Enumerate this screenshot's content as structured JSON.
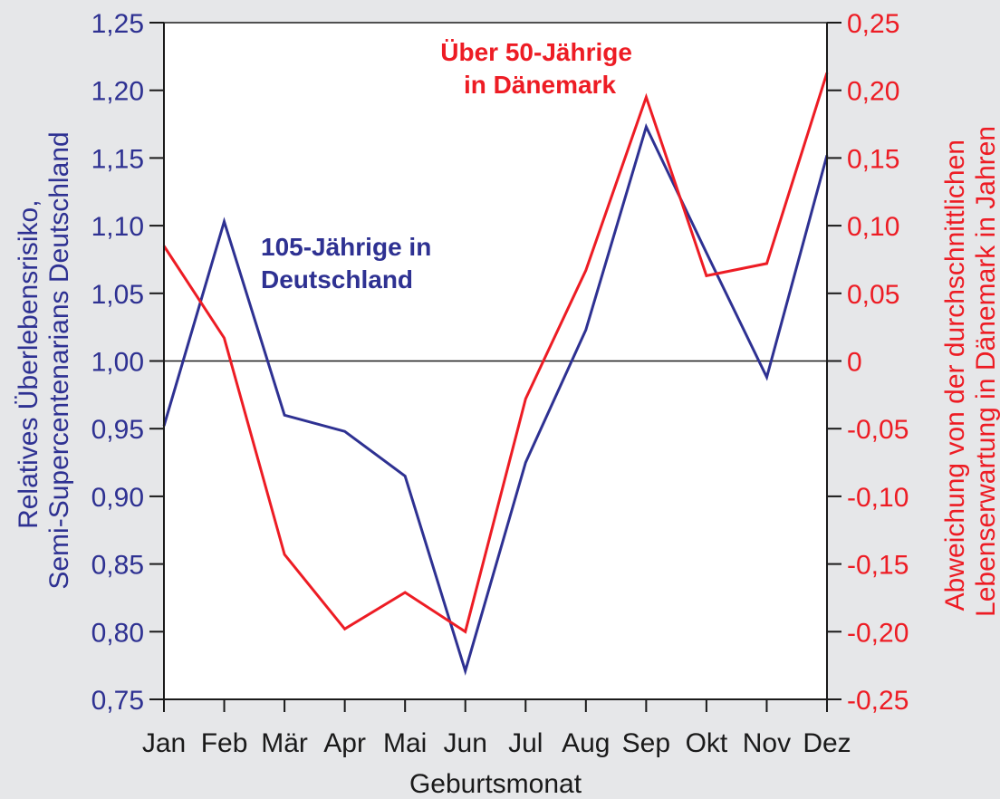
{
  "chart_data": {
    "type": "line",
    "xlabel": "Geburtsmonat",
    "ylabel_left": [
      "Relatives Überlebensrisiko,",
      "Semi-Supercentenarians Deutschland"
    ],
    "ylabel_right": [
      "Abweichung von der durchschnittlichen",
      "Lebenserwartung in Dänemark in Jahren"
    ],
    "categories": [
      "Jan",
      "Feb",
      "Mär",
      "Apr",
      "Mai",
      "Jun",
      "Jul",
      "Aug",
      "Sep",
      "Okt",
      "Nov",
      "Dez"
    ],
    "y_left": {
      "range": [
        0.75,
        1.25
      ],
      "ticks": [
        1.25,
        1.2,
        1.15,
        1.1,
        1.05,
        1.0,
        0.95,
        0.9,
        0.85,
        0.8,
        0.75
      ],
      "tick_labels": [
        "1,25",
        "1,20",
        "1,15",
        "1,10",
        "1,05",
        "1,00",
        "0,95",
        "0,90",
        "0,85",
        "0,80",
        "0,75"
      ]
    },
    "y_right": {
      "range": [
        -0.25,
        0.25
      ],
      "ticks": [
        0.25,
        0.2,
        0.15,
        0.1,
        0.05,
        0,
        -0.05,
        -0.1,
        -0.15,
        -0.2,
        -0.25
      ],
      "tick_labels": [
        "0,25",
        "0,20",
        "0,15",
        "0,10",
        "0,05",
        "0",
        "-0,05",
        "-0,10",
        "-0,15",
        "-0,20",
        "-0,25"
      ]
    },
    "reference_line": 1.0,
    "grid": false,
    "series": [
      {
        "name": [
          "105-Jährige in",
          "Deutschland"
        ],
        "axis": "left",
        "color": "#2e3192",
        "values": [
          0.952,
          1.103,
          0.96,
          0.948,
          0.915,
          0.771,
          0.925,
          1.023,
          1.173,
          1.08,
          0.988,
          1.152
        ]
      },
      {
        "name": [
          "Über 50-Jährige",
          "in Dänemark"
        ],
        "axis": "right",
        "color": "#ed1c24",
        "values": [
          0.085,
          0.017,
          -0.143,
          -0.198,
          -0.171,
          -0.2,
          -0.028,
          0.067,
          0.195,
          0.063,
          0.072,
          0.213
        ]
      }
    ]
  }
}
